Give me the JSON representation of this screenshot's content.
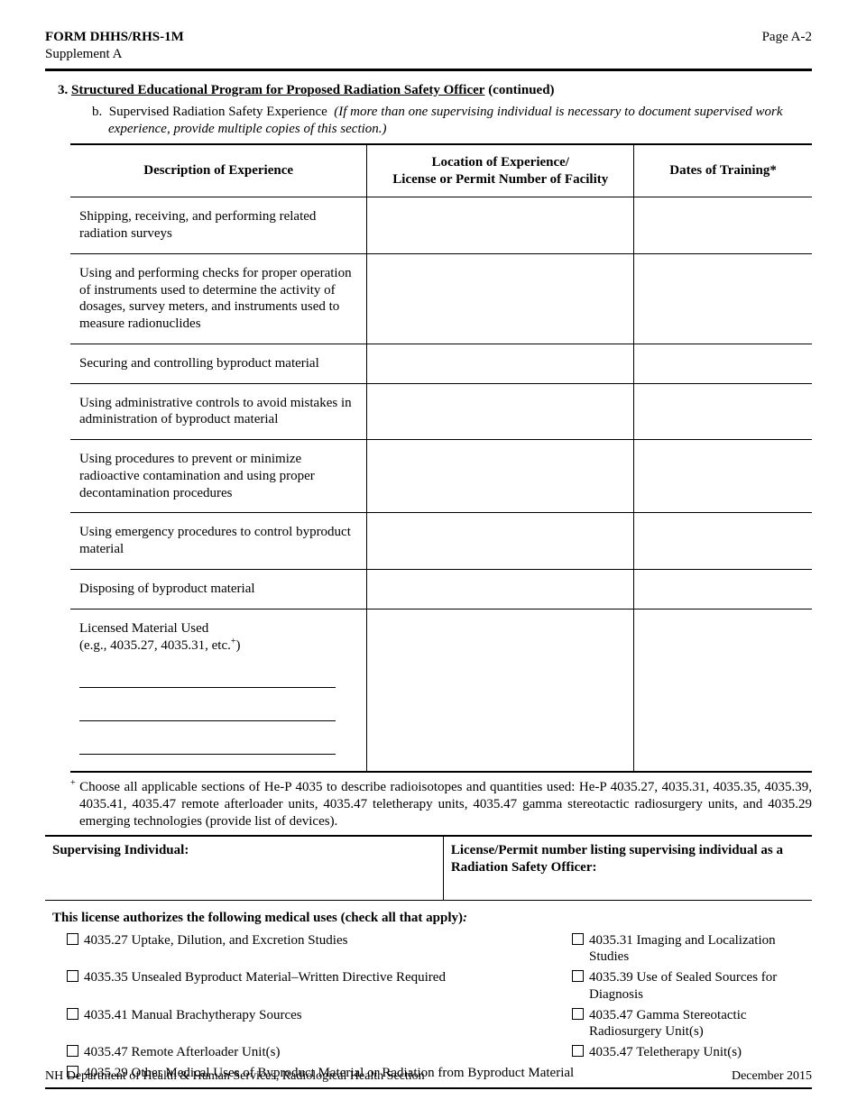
{
  "header": {
    "form_title": "FORM DHHS/RHS-1M",
    "supplement": "Supplement A",
    "page_label": "Page A-2"
  },
  "section3": {
    "number": "3.",
    "title": "Structured Educational Program for Proposed Radiation Safety Officer",
    "continued": "(continued)",
    "b_label": "b.",
    "b_text": "Supervised Radiation Safety Experience",
    "b_italic": "(If more than one supervising individual is necessary to document supervised work experience,  provide multiple copies of this section.)"
  },
  "exp_table": {
    "headers": {
      "desc": "Description of Experience",
      "loc_line1": "Location of Experience/",
      "loc_line2": "License or Permit Number of Facility",
      "dates": "Dates of Training*"
    },
    "rows": [
      {
        "desc": "Shipping, receiving, and performing related radiation surveys"
      },
      {
        "desc": "Using and performing checks for proper operation of instruments used to determine the activity of dosages, survey meters, and instruments used to measure radionuclides"
      },
      {
        "desc": "Securing and controlling byproduct material"
      },
      {
        "desc": "Using administrative controls to avoid mistakes in administration of byproduct material"
      },
      {
        "desc": "Using procedures to prevent or minimize radioactive contamination and using proper decontamination procedures"
      },
      {
        "desc": "Using emergency procedures to control byproduct material"
      },
      {
        "desc": "Disposing of byproduct material"
      }
    ],
    "licensed_material": {
      "line1": "Licensed Material Used",
      "line2_prefix": "(e.g., 4035.27, 4035.31, etc.",
      "sup": "+",
      "line2_suffix": ")"
    }
  },
  "plus_note": {
    "sup": "+",
    "text": "Choose all applicable sections of He-P 4035 to describe radioisotopes and quantities used:  He-P 4035.27, 4035.31, 4035.35, 4035.39, 4035.41, 4035.47 remote afterloader units, 4035.47 teletherapy units, 4035.47 gamma stereotactic radiosurgery units, and 4035.29 emerging technologies (provide list of devices)."
  },
  "supervising": {
    "left": "Supervising Individual:",
    "right": "License/Permit number listing supervising individual as a Radiation Safety Officer:"
  },
  "checks": {
    "header_bold": "This license authorizes the following medical uses (check all that apply)",
    "header_colon": ":",
    "rows": [
      {
        "l": "4035.27 Uptake, Dilution, and Excretion Studies",
        "r": "4035.31 Imaging and Localization Studies"
      },
      {
        "l": "4035.35 Unsealed Byproduct Material–Written Directive Required",
        "r": "4035.39 Use of Sealed Sources for Diagnosis"
      },
      {
        "l": "4035.41 Manual Brachytherapy Sources",
        "r": "4035.47 Gamma Stereotactic Radiosurgery Unit(s)"
      },
      {
        "l": "4035.47 Remote Afterloader Unit(s)",
        "r": "4035.47 Teletherapy Unit(s)"
      },
      {
        "l": "4035.29 Other Medical Uses of Byproduct Material or Radiation from Byproduct Material",
        "r": ""
      }
    ]
  },
  "footer": {
    "left": "NH Department of Health & Human Services, Radiological Health Section",
    "right": "December 2015"
  }
}
